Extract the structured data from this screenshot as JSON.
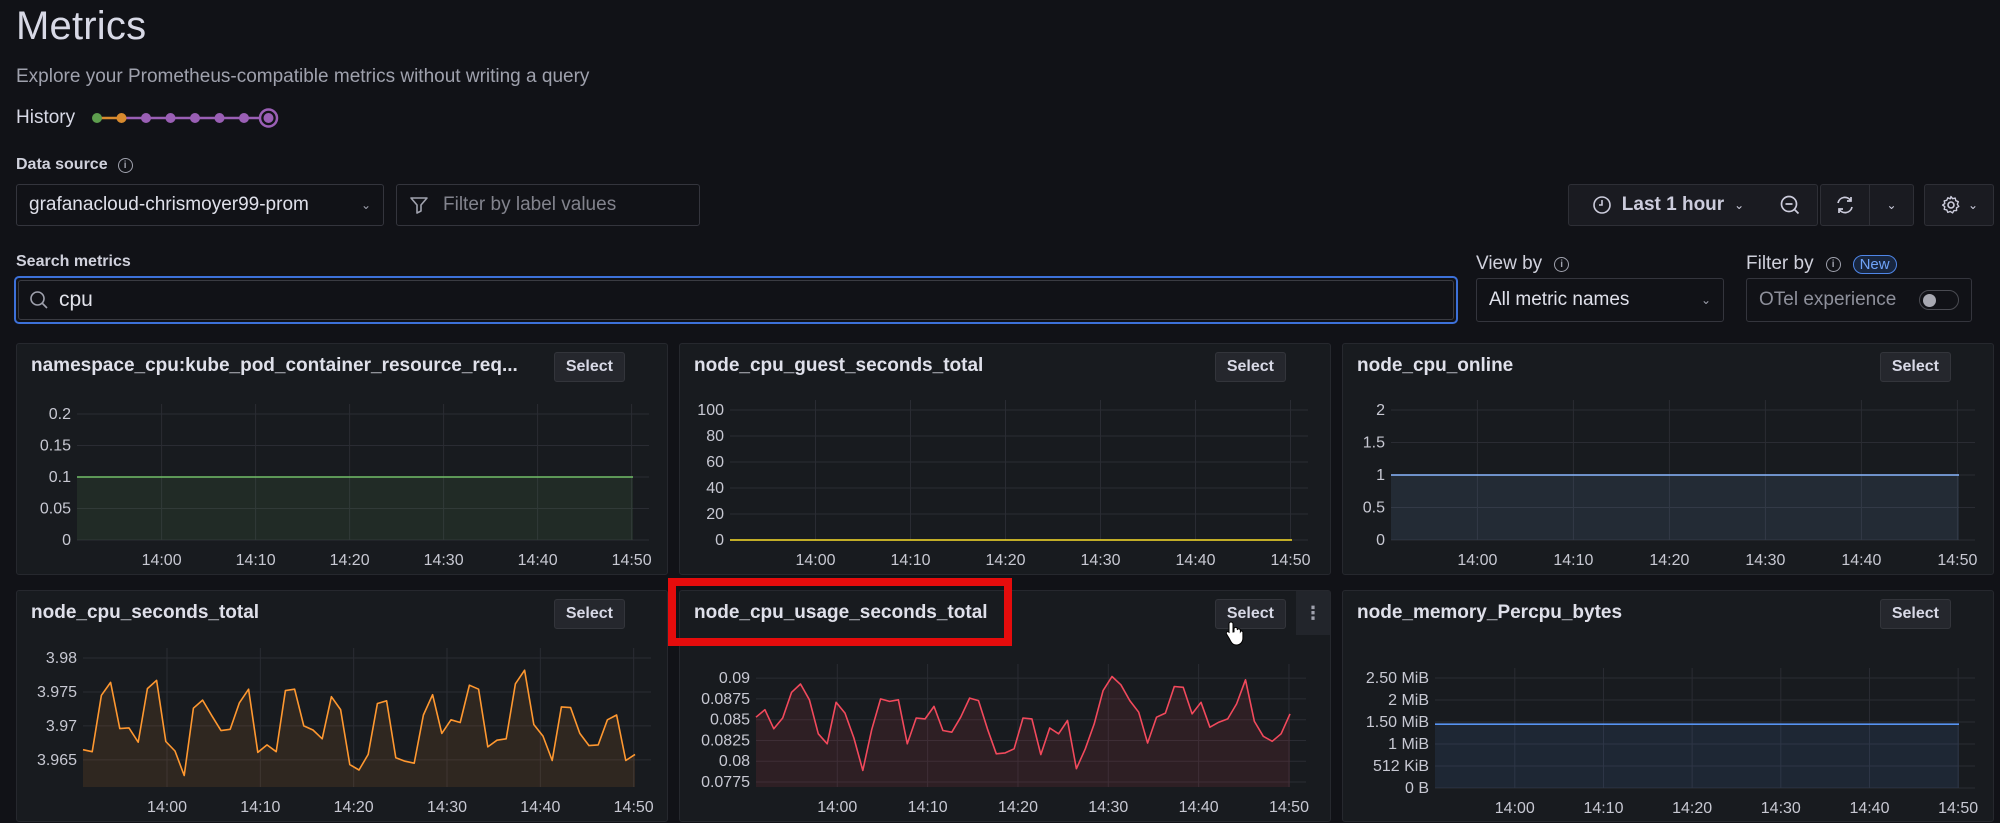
{
  "header": {
    "title": "Metrics",
    "subtitle": "Explore your Prometheus-compatible metrics without writing a query",
    "history_label": "History",
    "history_steps": [
      {
        "color": "#5e9e4e",
        "current": false
      },
      {
        "color": "#d98a2e",
        "current": false
      },
      {
        "color": "#9a5fb5",
        "current": false
      },
      {
        "color": "#9a5fb5",
        "current": false
      },
      {
        "color": "#9a5fb5",
        "current": false
      },
      {
        "color": "#9a5fb5",
        "current": false
      },
      {
        "color": "#9a5fb5",
        "current": false
      },
      {
        "color": "#9a5fb5",
        "current": true
      }
    ]
  },
  "controls": {
    "data_source_label": "Data source",
    "data_source_value": "grafanacloud-chrismoyer99-prom",
    "label_filter_placeholder": "Filter by label values",
    "time_range": "Last 1 hour",
    "search_label": "Search metrics",
    "search_value": "cpu",
    "view_by_label": "View by",
    "view_by_value": "All metric names",
    "filter_by_label": "Filter by",
    "filter_by_badge": "New",
    "otel_label": "OTel experience",
    "otel_enabled": false
  },
  "panels": [
    {
      "title": "namespace_cpu:kube_pod_container_resource_req...",
      "select_label": "Select"
    },
    {
      "title": "node_cpu_guest_seconds_total",
      "select_label": "Select"
    },
    {
      "title": "node_cpu_online",
      "select_label": "Select"
    },
    {
      "title": "node_cpu_seconds_total",
      "select_label": "Select"
    },
    {
      "title": "node_cpu_usage_seconds_total",
      "select_label": "Select",
      "menu_label": "⋮"
    },
    {
      "title": "node_memory_Percpu_bytes",
      "select_label": "Select"
    }
  ],
  "chart_data": [
    {
      "type": "area",
      "title": "namespace_cpu:kube_pod_container_resource_req...",
      "x_ticks": [
        "14:00",
        "14:10",
        "14:20",
        "14:30",
        "14:40",
        "14:50"
      ],
      "y_ticks": [
        "0",
        "0.05",
        "0.1",
        "0.15",
        "0.2"
      ],
      "ylim": [
        0,
        0.2
      ],
      "color": "#73bf69",
      "series": [
        {
          "name": "namespace_cpu",
          "values": [
            0.1,
            0.1
          ]
        }
      ]
    },
    {
      "type": "line",
      "title": "node_cpu_guest_seconds_total",
      "x_ticks": [
        "14:00",
        "14:10",
        "14:20",
        "14:30",
        "14:40",
        "14:50"
      ],
      "y_ticks": [
        "0",
        "20",
        "40",
        "60",
        "80",
        "100"
      ],
      "ylim": [
        0,
        100
      ],
      "color": "#fade2a",
      "series": [
        {
          "name": "node_cpu_guest_seconds_total",
          "values": [
            0,
            0
          ]
        }
      ]
    },
    {
      "type": "area",
      "title": "node_cpu_online",
      "x_ticks": [
        "14:00",
        "14:10",
        "14:20",
        "14:30",
        "14:40",
        "14:50"
      ],
      "y_ticks": [
        "0",
        "0.5",
        "1",
        "1.5",
        "2"
      ],
      "ylim": [
        0,
        2
      ],
      "color": "#8ab8ff",
      "series": [
        {
          "name": "node_cpu_online",
          "values": [
            1,
            1
          ]
        }
      ]
    },
    {
      "type": "area",
      "title": "node_cpu_seconds_total",
      "x_ticks": [
        "14:00",
        "14:10",
        "14:20",
        "14:30",
        "14:40",
        "14:50"
      ],
      "y_ticks": [
        "3.965",
        "3.97",
        "3.975",
        "3.98"
      ],
      "ylim": [
        3.961,
        3.98
      ],
      "color": "#ff9830",
      "series": [
        {
          "name": "node_cpu_seconds_total",
          "values": [
            3.9665,
            3.9662,
            3.9745,
            3.9764,
            3.9696,
            3.9697,
            3.9676,
            3.9755,
            3.9767,
            3.9677,
            3.9663,
            3.9627,
            3.9726,
            3.9738,
            3.9715,
            3.9693,
            3.9695,
            3.9734,
            3.9754,
            3.9661,
            3.9672,
            3.9662,
            3.9752,
            3.9754,
            3.97,
            3.9694,
            3.9681,
            3.9743,
            3.9724,
            3.9643,
            3.9635,
            3.9658,
            3.9733,
            3.9737,
            3.9653,
            3.9648,
            3.9645,
            3.9716,
            3.9746,
            3.9689,
            3.9709,
            3.9705,
            3.976,
            3.9754,
            3.9669,
            3.9679,
            3.9681,
            3.9762,
            3.9782,
            3.9702,
            3.9685,
            3.9649,
            3.9728,
            3.9727,
            3.9689,
            3.9671,
            3.9672,
            3.9709,
            3.9716,
            3.9649,
            3.9658
          ]
        }
      ]
    },
    {
      "type": "area",
      "title": "node_cpu_usage_seconds_total",
      "x_ticks": [
        "14:00",
        "14:10",
        "14:20",
        "14:30",
        "14:40",
        "14:50"
      ],
      "y_ticks": [
        "0.0775",
        "0.08",
        "0.0825",
        "0.085",
        "0.0875",
        "0.09"
      ],
      "ylim": [
        0.0769,
        0.0905
      ],
      "color": "#f2495c",
      "series": [
        {
          "name": "node_cpu_usage_seconds_total",
          "values": [
            0.0853,
            0.0862,
            0.0839,
            0.0852,
            0.0883,
            0.0893,
            0.0874,
            0.0833,
            0.0821,
            0.0871,
            0.0858,
            0.0828,
            0.0789,
            0.0838,
            0.0875,
            0.0872,
            0.0874,
            0.0821,
            0.0852,
            0.0851,
            0.0866,
            0.0837,
            0.0835,
            0.0853,
            0.0876,
            0.0873,
            0.0839,
            0.0809,
            0.081,
            0.0815,
            0.0852,
            0.0851,
            0.0808,
            0.084,
            0.0833,
            0.0849,
            0.0791,
            0.0815,
            0.0845,
            0.0885,
            0.0902,
            0.0892,
            0.0873,
            0.0859,
            0.0822,
            0.0853,
            0.0858,
            0.089,
            0.0889,
            0.0857,
            0.0871,
            0.0841,
            0.0847,
            0.0851,
            0.0869,
            0.0898,
            0.0848,
            0.083,
            0.0824,
            0.0833,
            0.0857
          ]
        }
      ]
    },
    {
      "type": "area",
      "title": "node_memory_Percpu_bytes",
      "x_ticks": [
        "14:00",
        "14:10",
        "14:20",
        "14:30",
        "14:40",
        "14:50"
      ],
      "y_ticks": [
        "0 B",
        "512 KiB",
        "1 MiB",
        "1.50 MiB",
        "2 MiB",
        "2.50 MiB"
      ],
      "ylim": [
        0,
        2.5
      ],
      "unit": "MiB",
      "color": "#5794f2",
      "series": [
        {
          "name": "node_memory_Percpu_bytes",
          "values": [
            1.45,
            1.45
          ]
        }
      ]
    }
  ]
}
